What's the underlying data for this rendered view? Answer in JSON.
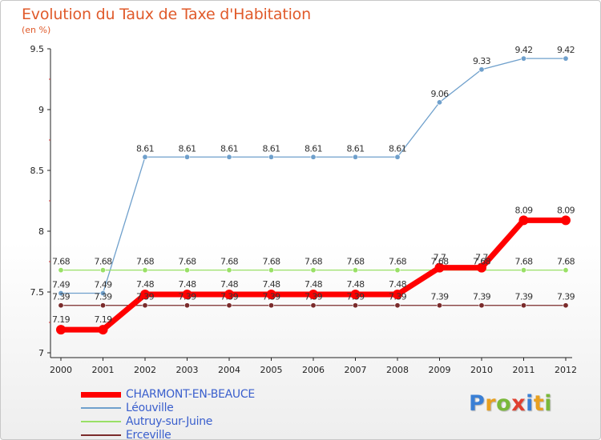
{
  "chart_data": {
    "type": "line",
    "title": "Evolution du Taux de Taxe d'Habitation",
    "subtitle": "(en %)",
    "x": [
      "2000",
      "2001",
      "2002",
      "2003",
      "2004",
      "2005",
      "2006",
      "2007",
      "2008",
      "2009",
      "2010",
      "2011",
      "2012"
    ],
    "ylim": [
      7,
      9.5
    ],
    "yticks": [
      "7",
      "7.5",
      "8",
      "8.5",
      "9",
      "9.5"
    ],
    "grid": false,
    "legend_position": "bottom-left",
    "series": [
      {
        "name": "CHARMONT-EN-BEAUCE",
        "color": "#ff0000",
        "labelColor": "#333333",
        "values": [
          7.19,
          7.19,
          7.48,
          7.48,
          7.48,
          7.48,
          7.48,
          7.48,
          7.48,
          7.7,
          7.7,
          8.09,
          8.09
        ],
        "labels": [
          "7.19",
          "7.19",
          "7.48",
          "7.48",
          "7.48",
          "7.48",
          "7.48",
          "7.48",
          "7.48",
          "7.7",
          "7.7",
          "8.09",
          "8.09"
        ]
      },
      {
        "name": "Léouville",
        "color": "#6fa0cc",
        "labelColor": "#333333",
        "values": [
          7.49,
          7.49,
          8.61,
          8.61,
          8.61,
          8.61,
          8.61,
          8.61,
          8.61,
          9.06,
          9.33,
          9.42,
          9.42
        ],
        "labels": [
          "7.49",
          "7.49",
          "8.61",
          "8.61",
          "8.61",
          "8.61",
          "8.61",
          "8.61",
          "8.61",
          "9.06",
          "9.33",
          "9.42",
          "9.42"
        ]
      },
      {
        "name": "Autruy-sur-Juine",
        "color": "#99e066",
        "labelColor": "#333333",
        "values": [
          7.68,
          7.68,
          7.68,
          7.68,
          7.68,
          7.68,
          7.68,
          7.68,
          7.68,
          7.68,
          7.68,
          7.68,
          7.68
        ],
        "labels": [
          "7.68",
          "7.68",
          "7.68",
          "7.68",
          "7.68",
          "7.68",
          "7.68",
          "7.68",
          "7.68",
          "7.68",
          "7.68",
          "7.68",
          "7.68"
        ]
      },
      {
        "name": "Erceville",
        "color": "#7a2b2b",
        "labelColor": "#333333",
        "values": [
          7.39,
          7.39,
          7.39,
          7.39,
          7.39,
          7.39,
          7.39,
          7.39,
          7.39,
          7.39,
          7.39,
          7.39,
          7.39
        ],
        "labels": [
          "7.39",
          "7.39",
          "7.39",
          "7.39",
          "7.39",
          "7.39",
          "7.39",
          "7.39",
          "7.39",
          "7.39",
          "7.39",
          "7.39",
          "7.39"
        ]
      }
    ]
  },
  "logo": {
    "letters": [
      "P",
      "r",
      "o",
      "x",
      "i",
      "t",
      "i"
    ],
    "colors": [
      "#3a7fd5",
      "#e8a020",
      "#7ab83a",
      "#e04030",
      "#3a7fd5",
      "#e8a020",
      "#7ab83a"
    ]
  }
}
